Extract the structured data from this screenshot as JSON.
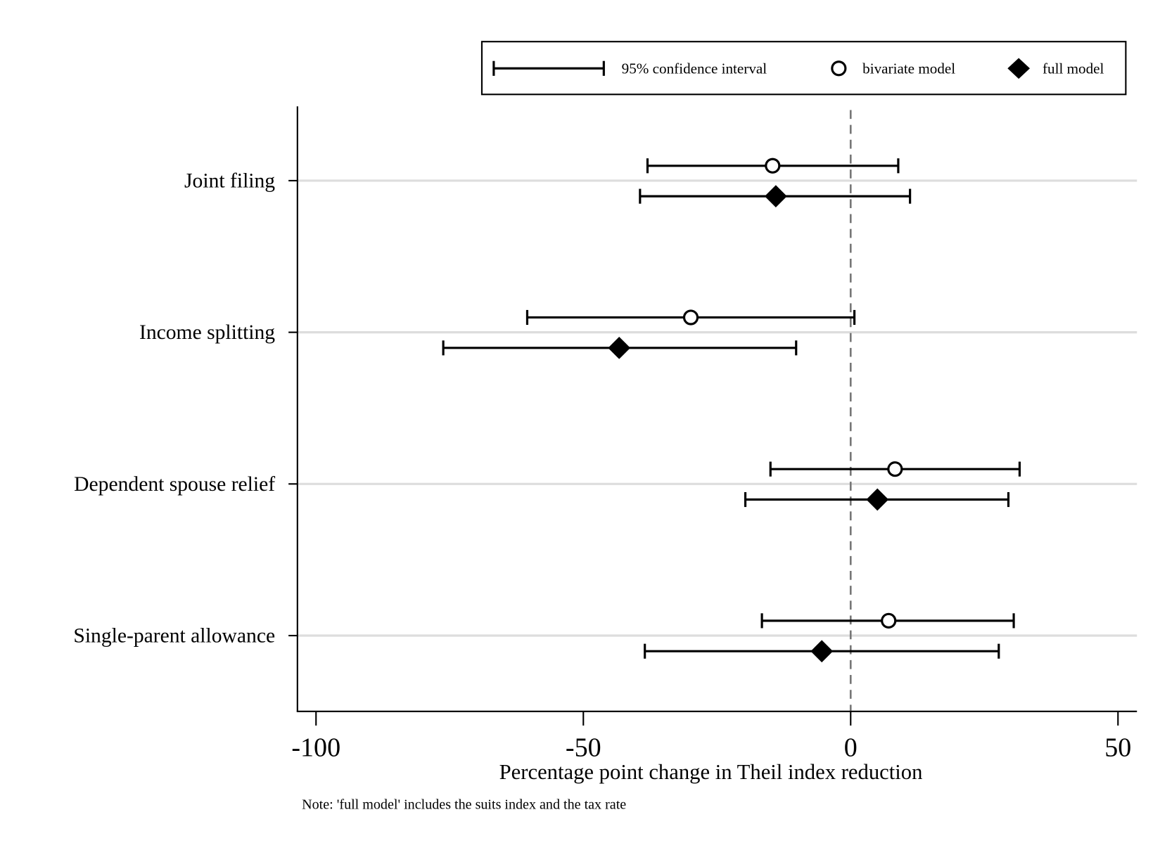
{
  "chart_data": {
    "type": "scatter",
    "subtype": "coefficient-plot",
    "xlabel": "Percentage point change in Theil index reduction",
    "note": "Note: 'full model' includes the suits index and the tax rate",
    "xlim": [
      -103.5,
      53.5
    ],
    "xticks": [
      -100,
      -50,
      0,
      50
    ],
    "xtick_labels": [
      "-100",
      "-50",
      "0",
      "50"
    ],
    "reference_line": 0,
    "grid": "horizontal at categories",
    "legend_position": "top-right",
    "legend": {
      "ci": "95% confidence interval",
      "bivariate": "bivariate model",
      "full": "full model"
    },
    "categories": [
      "Joint filing",
      "Income splitting",
      "Dependent spouse relief",
      "Single-parent allowance"
    ],
    "series": [
      {
        "name": "bivariate model",
        "marker": "hollow-circle",
        "values": [
          -14.6,
          -29.9,
          8.3,
          7.1
        ],
        "ci_low": [
          -38.0,
          -60.5,
          -15.0,
          -16.6
        ],
        "ci_high": [
          8.9,
          0.7,
          31.6,
          30.5
        ]
      },
      {
        "name": "full model",
        "marker": "filled-diamond",
        "values": [
          -14.0,
          -43.3,
          5.0,
          -5.4
        ],
        "ci_low": [
          -39.4,
          -76.2,
          -19.7,
          -38.5
        ],
        "ci_high": [
          11.1,
          -10.2,
          29.5,
          27.7
        ]
      }
    ]
  }
}
